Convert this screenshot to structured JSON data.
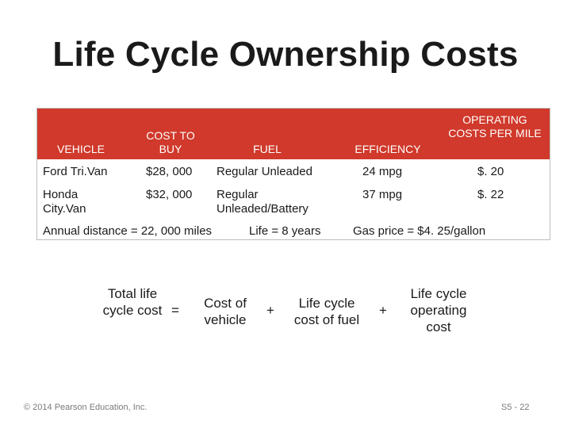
{
  "slide": {
    "title": "Life Cycle Ownership Costs",
    "accent_color": "#d0392b"
  },
  "table": {
    "headers": [
      "VEHICLE",
      "COST TO BUY",
      "FUEL",
      "EFFICIENCY",
      "OPERATING COSTS PER MILE"
    ],
    "rows": [
      [
        "Ford Tri.Van",
        "$28, 000",
        "Regular Unleaded",
        "24 mpg",
        "$. 20"
      ],
      [
        "Honda City.Van",
        "$32, 000",
        "Regular Unleaded/Battery",
        "37 mpg",
        "$. 22"
      ]
    ],
    "notes": {
      "distance": "Annual distance = 22, 000 miles",
      "life": "Life = 8 years",
      "gas": "Gas price = $4. 25/gallon"
    }
  },
  "formula": {
    "term1": "Total life cycle cost",
    "equals": "=",
    "term2": "Cost of vehicle",
    "plus1": "+",
    "term3": "Life cycle cost of fuel",
    "plus2": "+",
    "term4": "Life cycle operating cost"
  },
  "footer": {
    "copyright": "© 2014 Pearson Education, Inc.",
    "page": "S5 - 22"
  }
}
